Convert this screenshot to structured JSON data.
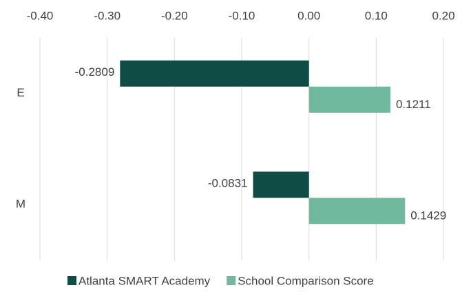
{
  "chart_data": {
    "type": "bar",
    "orientation": "horizontal",
    "categories": [
      "E",
      "M"
    ],
    "series": [
      {
        "name": "Atlanta SMART Academy",
        "color": "#0f4c45",
        "values": [
          -0.2809,
          -0.0831
        ]
      },
      {
        "name": "School Comparison Score",
        "color": "#71b99e",
        "values": [
          0.1211,
          0.1429
        ]
      }
    ],
    "xlim": [
      -0.4,
      0.2
    ],
    "xticks": [
      {
        "value": -0.4,
        "label": "-0.40"
      },
      {
        "value": -0.3,
        "label": "-0.30"
      },
      {
        "value": -0.2,
        "label": "-0.20"
      },
      {
        "value": -0.1,
        "label": "-0.10"
      },
      {
        "value": 0,
        "label": "0.00"
      },
      {
        "value": 0.1,
        "label": "0.10"
      },
      {
        "value": 0.2,
        "label": "0.20"
      }
    ],
    "grid": true,
    "legend": "bottom"
  }
}
